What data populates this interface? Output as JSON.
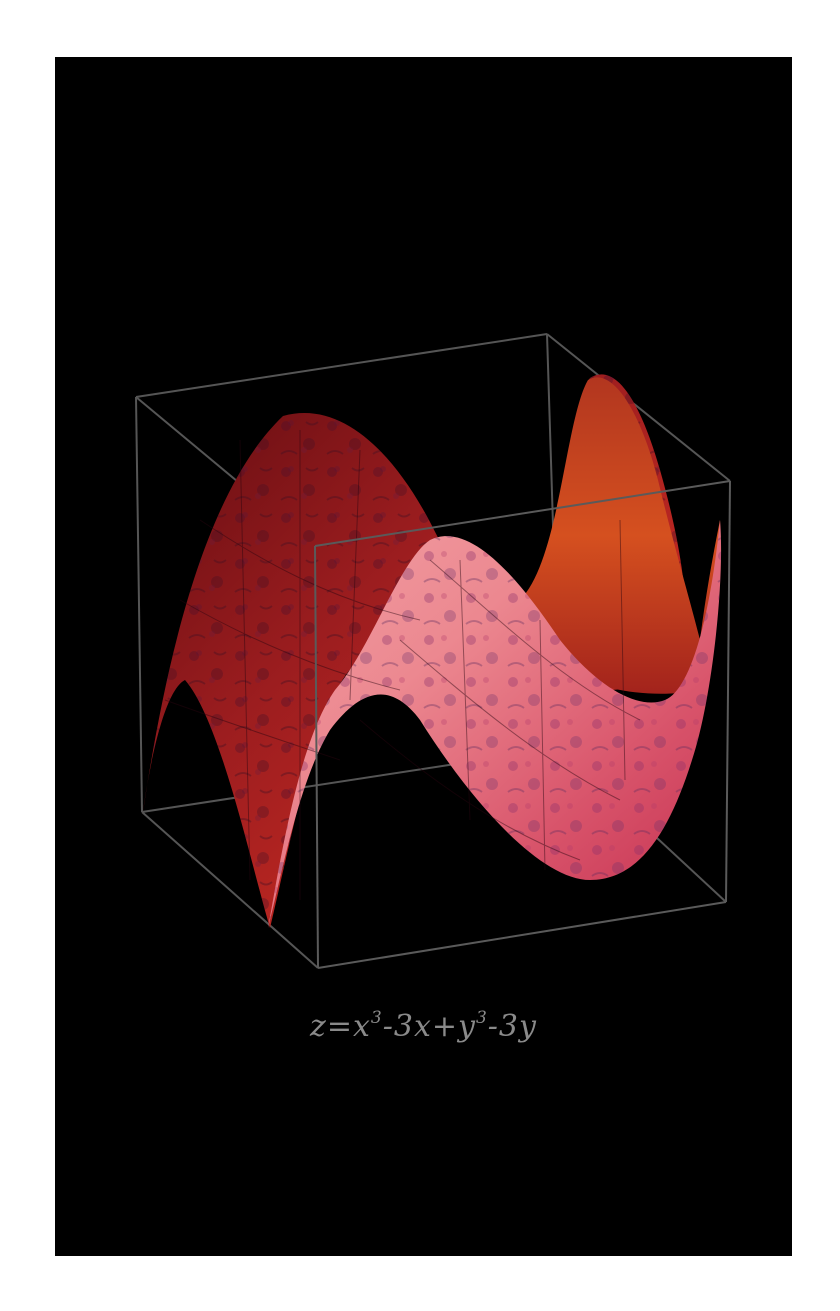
{
  "formula": {
    "lhs": "z",
    "eq": "=",
    "t1": "x",
    "e1": "3",
    "t2": "-3x+",
    "t3": "y",
    "e2": "3",
    "t4": "-3y"
  },
  "colors": {
    "background": "#000000",
    "frame": "#ffffff",
    "box_edges": "#5a5a5a",
    "surface_back": "#8f1a1c",
    "surface_front": "#e5727e",
    "formula_text": "#8a8a8a"
  }
}
